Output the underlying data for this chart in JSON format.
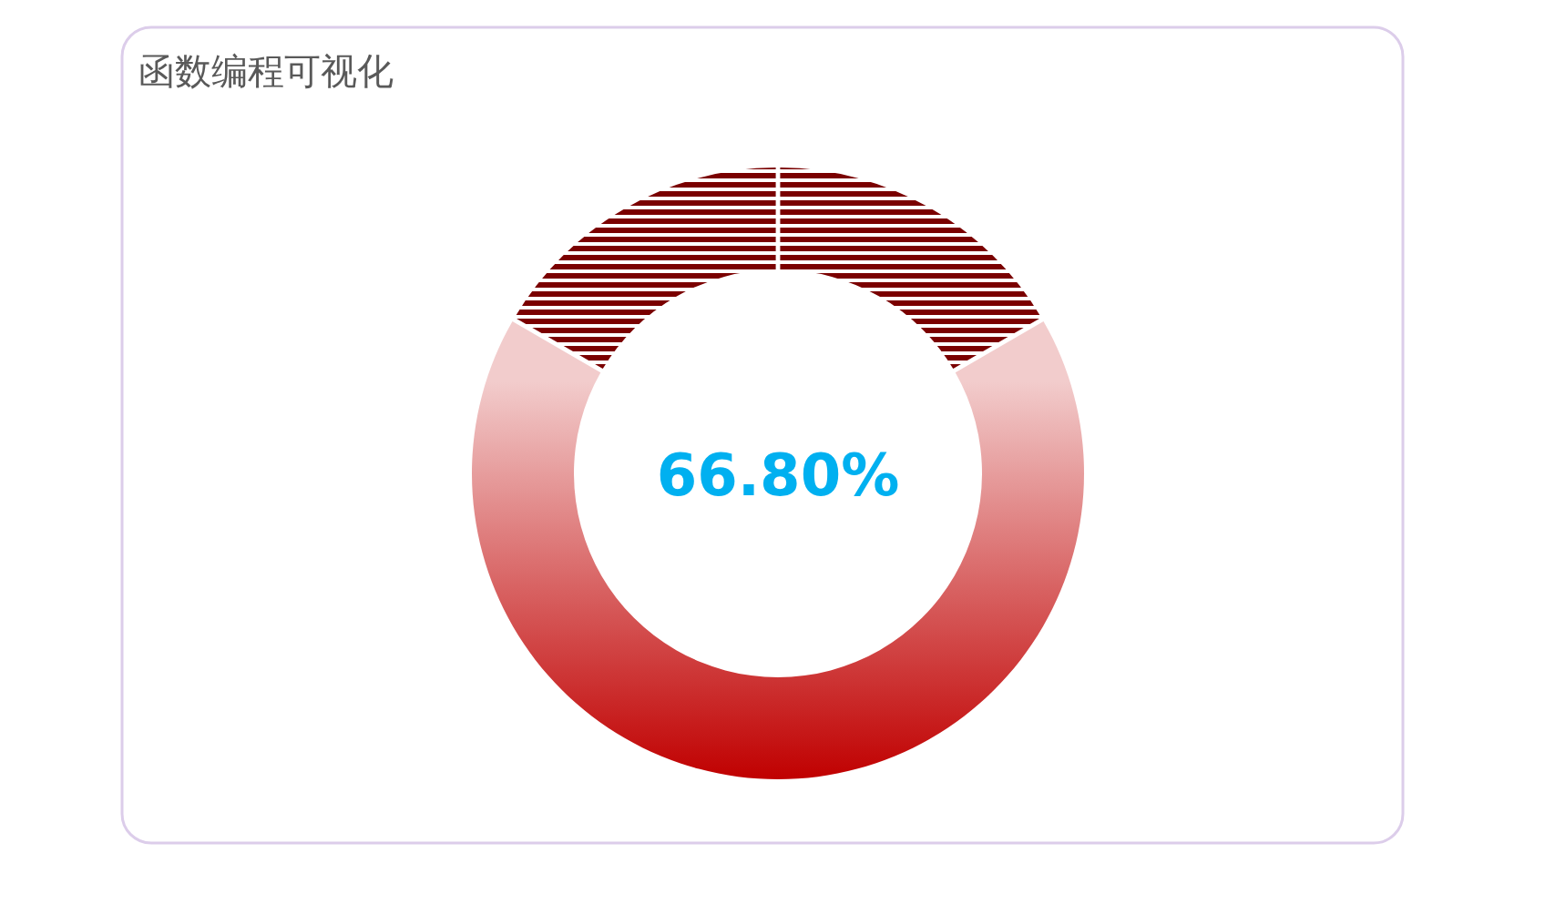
{
  "chart_data": {
    "type": "donut",
    "title": "函数编程可视化",
    "categories": [
      null,
      null,
      null
    ],
    "values": [
      16.6,
      66.8,
      16.6
    ],
    "colors": [
      "#7a0000",
      "#c00000",
      "#7a0000"
    ],
    "annotations": [
      "66.80%"
    ]
  }
}
